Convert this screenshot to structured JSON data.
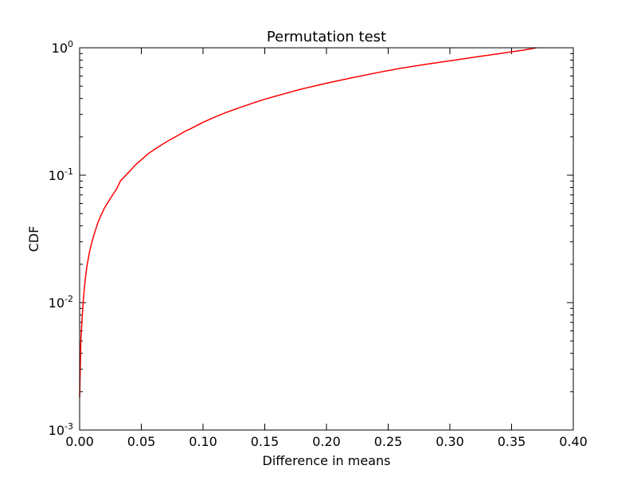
{
  "chart_data": {
    "type": "line",
    "title": "Permutation test",
    "xlabel": "Difference in means",
    "ylabel": "CDF",
    "xlim": [
      0.0,
      0.4
    ],
    "ylim": [
      0.001,
      1.0
    ],
    "yscale": "log",
    "grid": false,
    "x_ticks": [
      {
        "value": 0.0,
        "label": "0.00"
      },
      {
        "value": 0.05,
        "label": "0.05"
      },
      {
        "value": 0.1,
        "label": "0.10"
      },
      {
        "value": 0.15,
        "label": "0.15"
      },
      {
        "value": 0.2,
        "label": "0.20"
      },
      {
        "value": 0.25,
        "label": "0.25"
      },
      {
        "value": 0.3,
        "label": "0.30"
      },
      {
        "value": 0.35,
        "label": "0.35"
      },
      {
        "value": 0.4,
        "label": "0.40"
      }
    ],
    "y_ticks": [
      {
        "value": 0.001,
        "base": "10",
        "exp": "-3"
      },
      {
        "value": 0.01,
        "base": "10",
        "exp": "-2"
      },
      {
        "value": 0.1,
        "base": "10",
        "exp": "-1"
      },
      {
        "value": 1.0,
        "base": "10",
        "exp": "0"
      }
    ],
    "series": [
      {
        "name": "CDF",
        "color": "#ff0000",
        "x": [
          0.0,
          0.0005,
          0.001,
          0.002,
          0.003,
          0.004,
          0.005,
          0.006,
          0.008,
          0.01,
          0.012,
          0.015,
          0.018,
          0.02,
          0.025,
          0.03,
          0.033,
          0.04,
          0.045,
          0.05,
          0.055,
          0.06,
          0.07,
          0.08,
          0.085,
          0.09,
          0.1,
          0.11,
          0.12,
          0.13,
          0.14,
          0.15,
          0.16,
          0.17,
          0.18,
          0.19,
          0.2,
          0.22,
          0.24,
          0.26,
          0.28,
          0.3,
          0.32,
          0.34,
          0.36,
          0.37
        ],
        "y": [
          0.0018,
          0.003,
          0.005,
          0.0075,
          0.0105,
          0.0135,
          0.0165,
          0.0195,
          0.025,
          0.03,
          0.035,
          0.043,
          0.05,
          0.055,
          0.066,
          0.078,
          0.09,
          0.106,
          0.12,
          0.132,
          0.146,
          0.158,
          0.182,
          0.206,
          0.22,
          0.232,
          0.26,
          0.287,
          0.314,
          0.34,
          0.367,
          0.395,
          0.42,
          0.447,
          0.475,
          0.5,
          0.527,
          0.58,
          0.635,
          0.69,
          0.74,
          0.79,
          0.845,
          0.9,
          0.96,
          1.0
        ]
      }
    ]
  }
}
